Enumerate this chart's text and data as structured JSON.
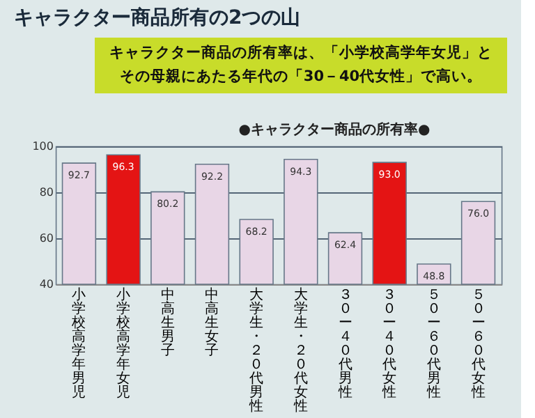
{
  "chart_data": {
    "type": "bar",
    "title": "キャラクター商品所有の2つの山",
    "subtitle": "キャラクター商品の所有率は、「小学校高学年女児」とその母親にあたる年代の「30－40代女性」で高い。",
    "annotations": [
      "●キャラクター商品の所有率●"
    ],
    "categories": [
      "小学校高学年男児",
      "小学校高学年女児",
      "中高生男子",
      "中高生女子",
      "大学生・２０代男性",
      "大学生・２０代女性",
      "３０ー４０代男性",
      "３０ー４０代女性",
      "５０ー６０代男性",
      "５０ー６０代女性"
    ],
    "values": [
      92.7,
      96.3,
      80.2,
      92.2,
      68.2,
      94.3,
      62.4,
      93.0,
      48.8,
      76.0
    ],
    "colors": [
      "#e8d6e6",
      "#e41414",
      "#e8d6e6",
      "#e8d6e6",
      "#e8d6e6",
      "#e8d6e6",
      "#e8d6e6",
      "#e41414",
      "#e8d6e6",
      "#e8d6e6"
    ],
    "value_labels": [
      "92.7",
      "96.3",
      "80.2",
      "92.2",
      "68.2",
      "94.3",
      "62.4",
      "93.0",
      "48.8",
      "76.0"
    ],
    "ylim": [
      40,
      100
    ],
    "yticks": [
      40,
      60,
      80,
      100
    ],
    "grid": "y"
  }
}
